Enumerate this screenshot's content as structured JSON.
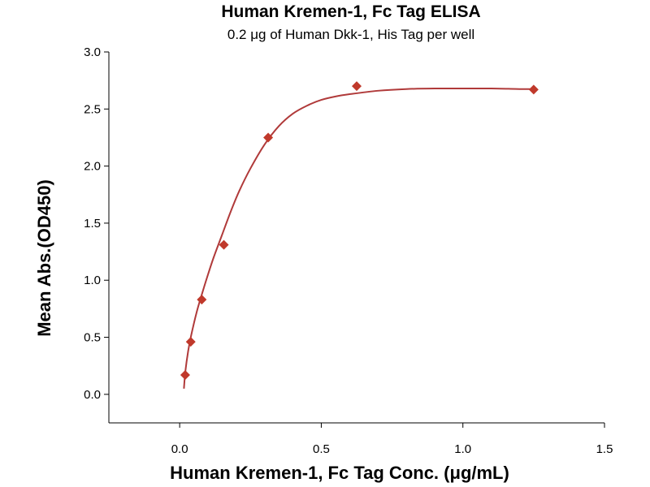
{
  "chart_data": {
    "type": "scatter",
    "title": "Human Kremen-1, Fc Tag ELISA",
    "subtitle": "0.2 μg of Human Dkk-1, His Tag per well",
    "xlabel": "Human Kremen-1, Fc Tag Conc. (μg/mL)",
    "ylabel": "Mean Abs.(OD450)",
    "xlim": [
      -0.25,
      1.5
    ],
    "ylim": [
      -0.25,
      3.0
    ],
    "xticks": [
      0.0,
      0.5,
      1.0,
      1.5
    ],
    "xtick_labels": [
      "0.0",
      "0.5",
      "1.0",
      "1.5"
    ],
    "yticks": [
      0.0,
      0.5,
      1.0,
      1.5,
      2.0,
      2.5,
      3.0
    ],
    "ytick_labels": [
      "0.0",
      "0.5",
      "1.0",
      "1.5",
      "2.0",
      "2.5",
      "3.0"
    ],
    "grid": false,
    "series": [
      {
        "x": [
          0.0195,
          0.039,
          0.078,
          0.156,
          0.3125,
          0.625,
          1.25
        ],
        "y": [
          0.17,
          0.46,
          0.83,
          1.31,
          2.25,
          2.7,
          2.67
        ],
        "marker": "diamond",
        "color": "#c0392b"
      }
    ],
    "fit_curve": {
      "type": "4PL",
      "color": "#b03a3a",
      "x": [
        0.015,
        0.02,
        0.03,
        0.04,
        0.06,
        0.08,
        0.1,
        0.12,
        0.15,
        0.18,
        0.21,
        0.25,
        0.3,
        0.35,
        0.4,
        0.45,
        0.5,
        0.55,
        0.6,
        0.7,
        0.8,
        0.9,
        1.0,
        1.1,
        1.2,
        1.25
      ],
      "y": [
        0.05,
        0.2,
        0.38,
        0.51,
        0.72,
        0.89,
        1.05,
        1.2,
        1.4,
        1.6,
        1.78,
        1.98,
        2.19,
        2.35,
        2.46,
        2.53,
        2.58,
        2.61,
        2.63,
        2.66,
        2.675,
        2.68,
        2.68,
        2.68,
        2.675,
        2.675
      ]
    }
  }
}
